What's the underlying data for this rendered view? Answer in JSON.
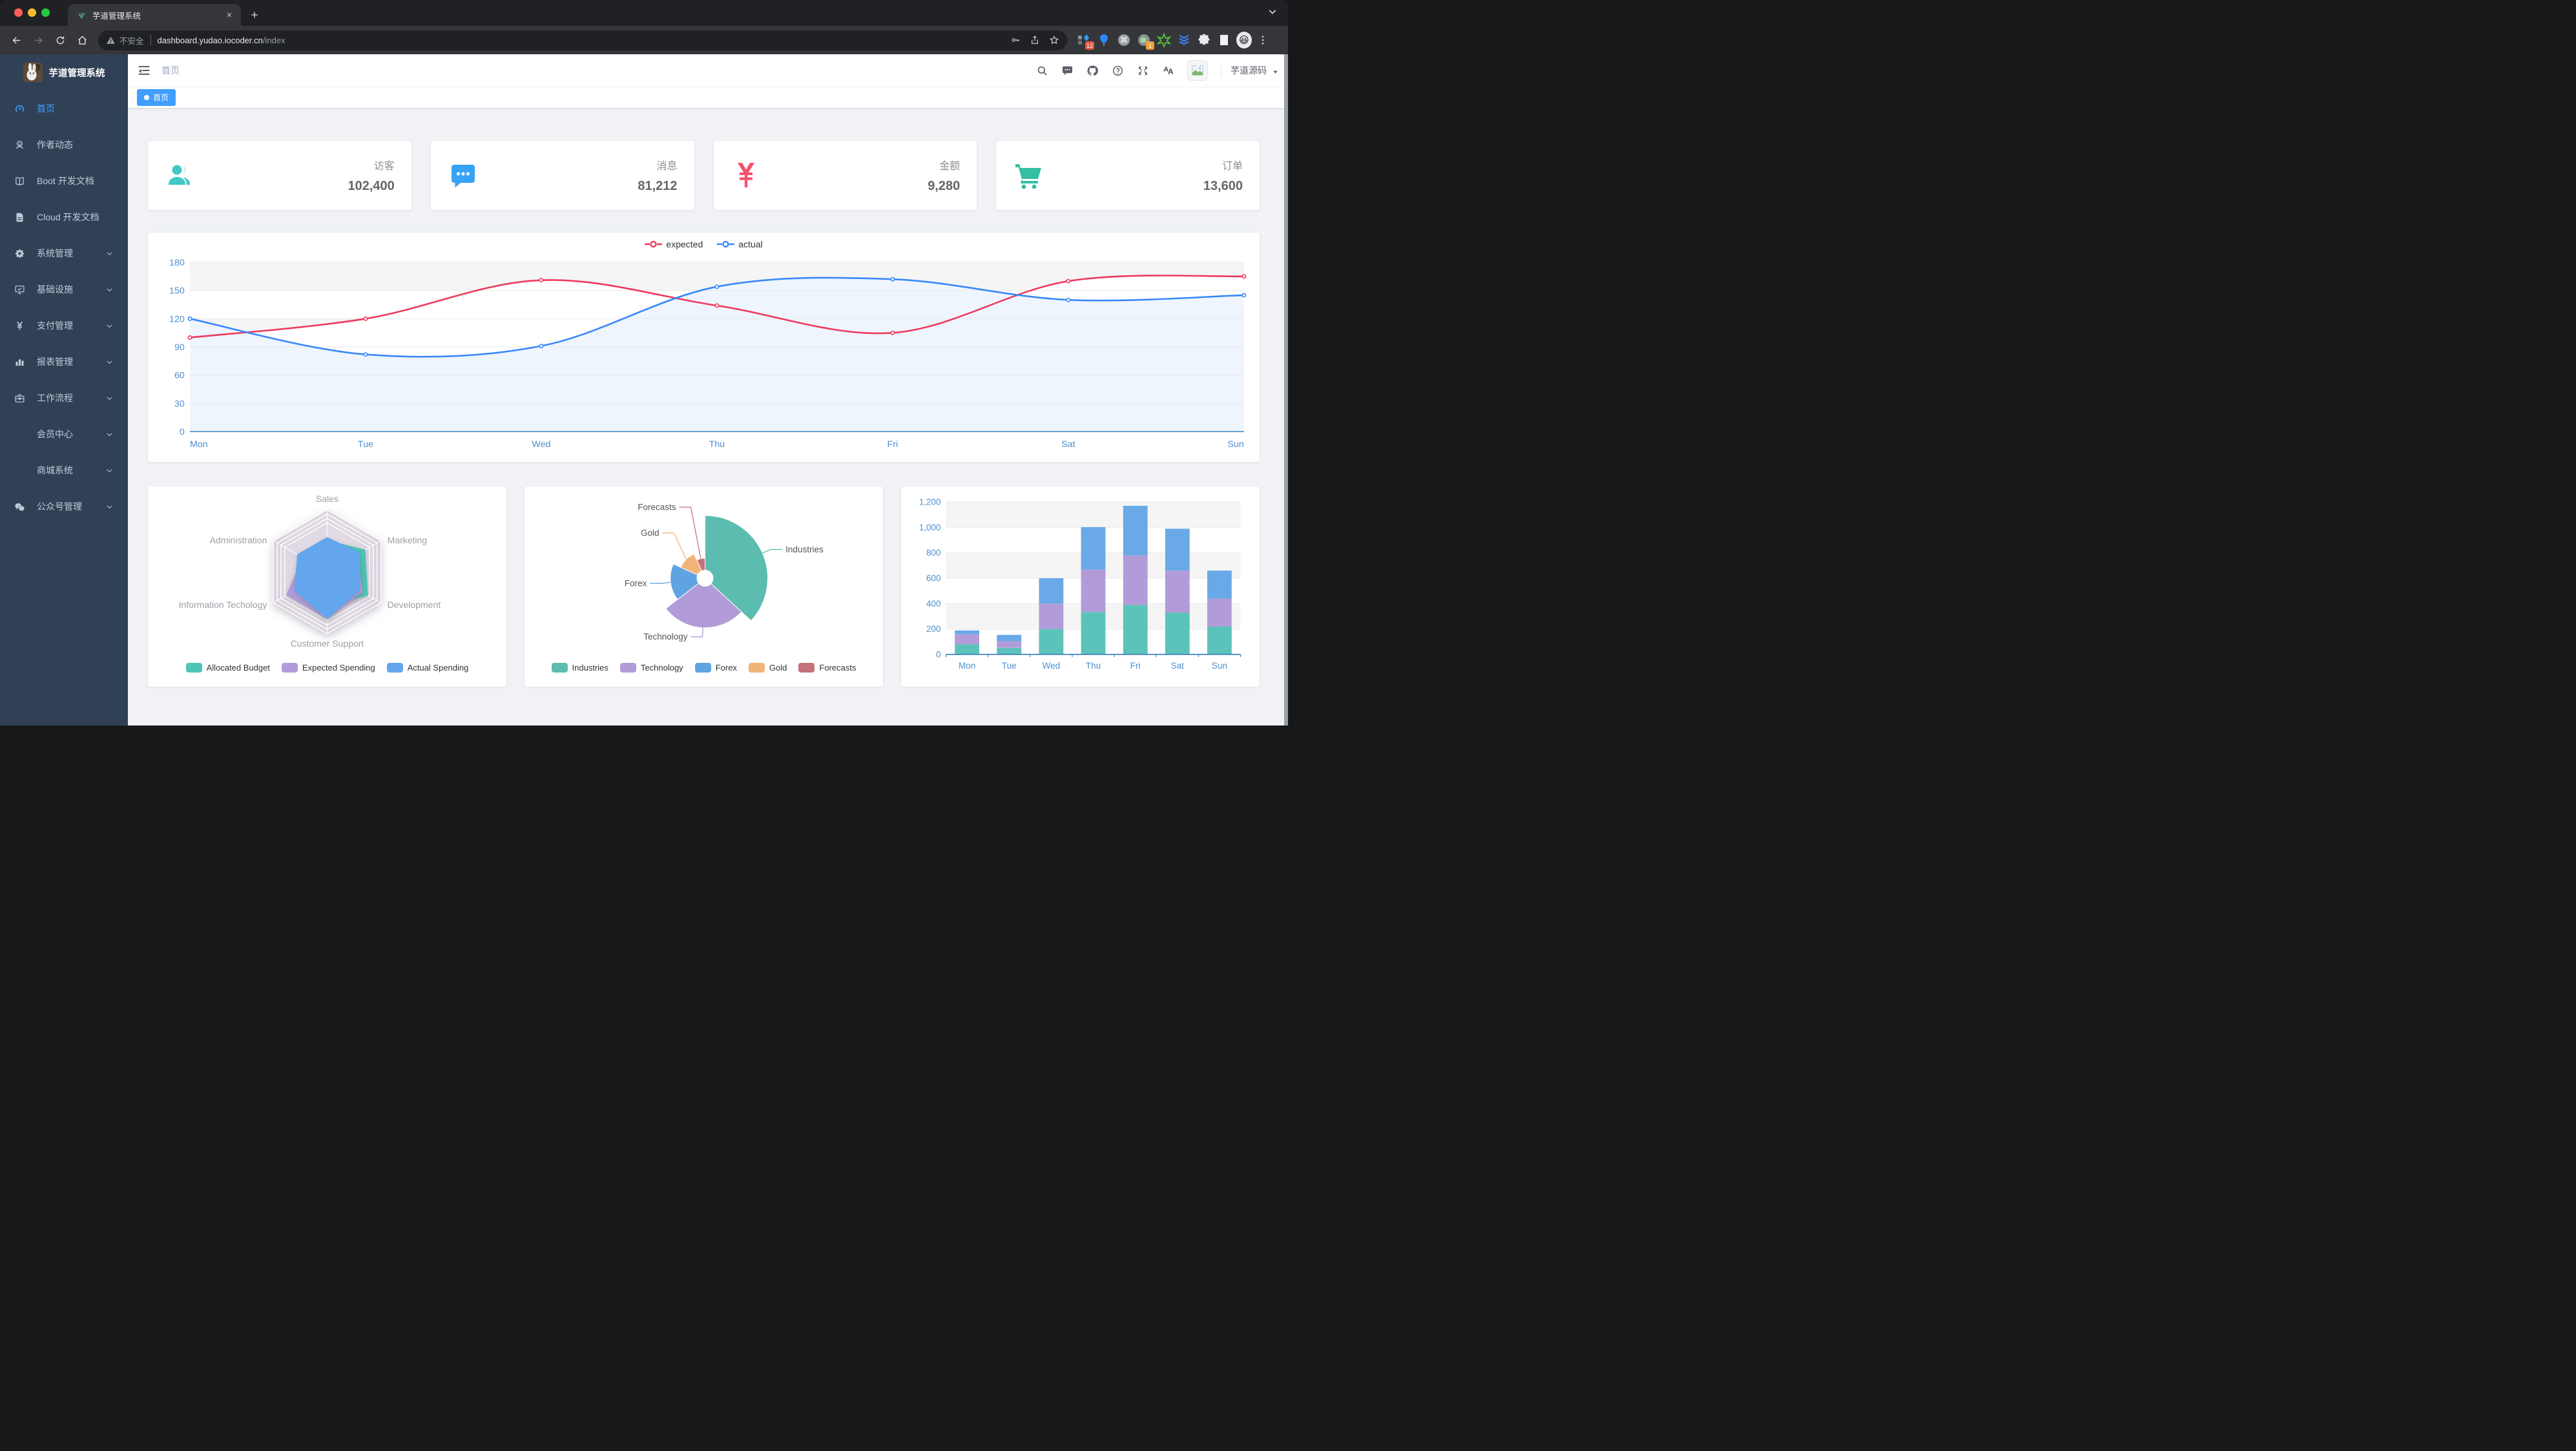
{
  "browser": {
    "tab": {
      "title": "芋道管理系统"
    },
    "toolbar": {
      "security_label": "不安全",
      "url_host": "dashboard.yudao.iocoder.cn",
      "url_path": "/index",
      "extension_badges": {
        "grid": "12",
        "circle": "1"
      }
    }
  },
  "sidebar": {
    "title": "芋道管理系统",
    "items": [
      {
        "label": "首页",
        "icon": "dashboard",
        "active": true,
        "arrow": false,
        "sub": false
      },
      {
        "label": "作者动态",
        "icon": "people",
        "active": false,
        "arrow": false,
        "sub": false
      },
      {
        "label": "Boot 开发文档",
        "icon": "book",
        "active": false,
        "arrow": false,
        "sub": false
      },
      {
        "label": "Cloud 开发文档",
        "icon": "doc",
        "active": false,
        "arrow": false,
        "sub": false
      },
      {
        "label": "系统管理",
        "icon": "gear",
        "active": false,
        "arrow": true,
        "sub": false
      },
      {
        "label": "基础设施",
        "icon": "monitor",
        "active": false,
        "arrow": true,
        "sub": false
      },
      {
        "label": "支付管理",
        "icon": "yen",
        "active": false,
        "arrow": true,
        "sub": false
      },
      {
        "label": "报表管理",
        "icon": "chart",
        "active": false,
        "arrow": true,
        "sub": false
      },
      {
        "label": "工作流程",
        "icon": "suitcase",
        "active": false,
        "arrow": true,
        "sub": false
      },
      {
        "label": "会员中心",
        "icon": null,
        "active": false,
        "arrow": true,
        "sub": true
      },
      {
        "label": "商城系统",
        "icon": null,
        "active": false,
        "arrow": true,
        "sub": true
      },
      {
        "label": "公众号管理",
        "icon": "wechat",
        "active": false,
        "arrow": true,
        "sub": false
      }
    ]
  },
  "navbar": {
    "breadcrumb": "首页",
    "username": "芋道源码"
  },
  "tags": [
    {
      "label": "首页",
      "active": true
    }
  ],
  "panels": [
    {
      "label": "访客",
      "value": "102,400",
      "icon": "people-group",
      "color": "#40c9c6"
    },
    {
      "label": "消息",
      "value": "81,212",
      "icon": "message",
      "color": "#36a3f7"
    },
    {
      "label": "金额",
      "value": "9,280",
      "icon": "money",
      "color": "#f4516c"
    },
    {
      "label": "订单",
      "value": "13,600",
      "icon": "cart",
      "color": "#34bfa3"
    }
  ],
  "chart_data": [
    {
      "type": "line",
      "categories": [
        "Mon",
        "Tue",
        "Wed",
        "Thu",
        "Fri",
        "Sat",
        "Sun"
      ],
      "series": [
        {
          "name": "expected",
          "color": "#ee3a5d",
          "values": [
            100,
            120,
            161,
            134,
            105,
            160,
            165
          ]
        },
        {
          "name": "actual",
          "color": "#3988fa",
          "values": [
            120,
            82,
            91,
            154,
            162,
            140,
            145
          ]
        }
      ],
      "ylim": [
        0,
        180
      ],
      "yticks": [
        0,
        30,
        60,
        90,
        120,
        150,
        180
      ],
      "grid": true,
      "legend_position": "top",
      "actual_area_color": "#eef5fd"
    },
    {
      "type": "radar",
      "indicators": [
        {
          "name": "Sales",
          "max": 10000
        },
        {
          "name": "Administration",
          "max": 20000
        },
        {
          "name": "Information Techology",
          "max": 20000
        },
        {
          "name": "Customer Support",
          "max": 20000
        },
        {
          "name": "Development",
          "max": 20000
        },
        {
          "name": "Marketing",
          "max": 20000
        }
      ],
      "series": [
        {
          "name": "Allocated Budget",
          "color": "#4ec4b6",
          "values": [
            5000,
            7000,
            12000,
            11000,
            15000,
            14000
          ]
        },
        {
          "name": "Expected Spending",
          "color": "#b19cd9",
          "values": [
            4000,
            9000,
            15000,
            15000,
            13000,
            11000
          ]
        },
        {
          "name": "Actual Spending",
          "color": "#64a6ee",
          "values": [
            5500,
            11000,
            12000,
            15000,
            12000,
            12000
          ]
        }
      ],
      "legend_position": "bottom"
    },
    {
      "type": "pie",
      "slices": [
        {
          "name": "Industries",
          "value": 320,
          "color": "#5cbcb0"
        },
        {
          "name": "Technology",
          "value": 240,
          "color": "#b19cd9"
        },
        {
          "name": "Forex",
          "value": 149,
          "color": "#5fa3e3"
        },
        {
          "name": "Gold",
          "value": 100,
          "color": "#f2b379"
        },
        {
          "name": "Forecasts",
          "value": 59,
          "color": "#c4737a"
        }
      ],
      "rose_type": "radius",
      "legend_position": "bottom"
    },
    {
      "type": "bar",
      "categories": [
        "Mon",
        "Tue",
        "Wed",
        "Thu",
        "Fri",
        "Sat",
        "Sun"
      ],
      "series": [
        {
          "color": "#5cc3ba",
          "values": [
            79,
            52,
            200,
            334,
            390,
            330,
            220
          ]
        },
        {
          "color": "#b19cd9",
          "values": [
            80,
            52,
            200,
            334,
            390,
            330,
            220
          ]
        },
        {
          "color": "#6aa9e7",
          "values": [
            30,
            50,
            200,
            334,
            390,
            330,
            220
          ]
        }
      ],
      "stacked": true,
      "ylim": [
        0,
        1200
      ],
      "yticks": [
        0,
        200,
        400,
        600,
        800,
        1000,
        1200
      ]
    }
  ]
}
